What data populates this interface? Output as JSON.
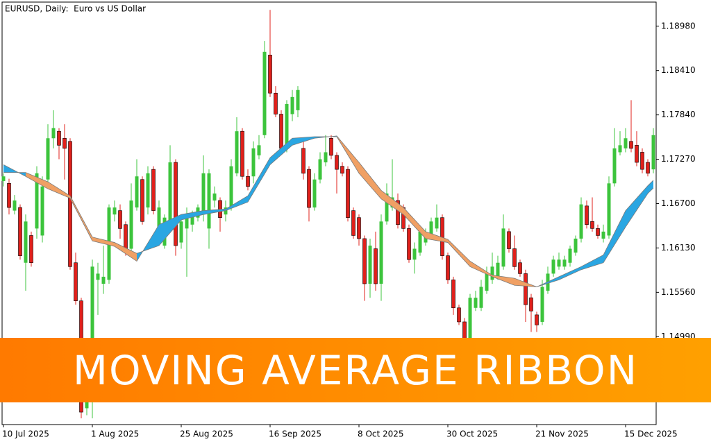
{
  "chart_data": {
    "type": "candlestick",
    "title": "EURUSD, Daily:  Euro vs US Dollar",
    "banner": "MOVING AVERAGE RIBBON",
    "up_color": "#3cc43c",
    "down_color": "#e0201b",
    "ylim": [
      1.1386,
      1.1929
    ],
    "yticks": [
      {
        "value": 1.1898,
        "label": "1.18980"
      },
      {
        "value": 1.1841,
        "label": "1.18410"
      },
      {
        "value": 1.1784,
        "label": "1.17840"
      },
      {
        "value": 1.1727,
        "label": "1.17270"
      },
      {
        "value": 1.167,
        "label": "1.16700"
      },
      {
        "value": 1.1613,
        "label": "1.16130"
      },
      {
        "value": 1.1556,
        "label": "1.15560"
      },
      {
        "value": 1.1499,
        "label": "1.14990"
      }
    ],
    "categories": [
      "10 Jul 2025",
      null,
      null,
      null,
      null,
      null,
      null,
      null,
      null,
      null,
      null,
      null,
      null,
      null,
      null,
      null,
      "1 Aug 2025",
      null,
      null,
      null,
      null,
      null,
      null,
      null,
      null,
      null,
      null,
      null,
      null,
      null,
      null,
      null,
      "25 Aug 2025",
      null,
      null,
      null,
      null,
      null,
      null,
      null,
      null,
      null,
      null,
      null,
      null,
      null,
      null,
      null,
      "16 Sep 2025",
      null,
      null,
      null,
      null,
      null,
      null,
      null,
      null,
      null,
      null,
      null,
      null,
      null,
      null,
      null,
      "8 Oct 2025",
      null,
      null,
      null,
      null,
      null,
      null,
      null,
      null,
      null,
      null,
      null,
      null,
      null,
      null,
      null,
      "30 Oct 2025",
      null,
      null,
      null,
      null,
      null,
      null,
      null,
      null,
      null,
      null,
      null,
      null,
      null,
      null,
      null,
      "21 Nov 2025",
      null,
      null,
      null,
      null,
      null,
      null,
      null,
      null,
      null,
      null,
      null,
      null,
      null,
      null,
      null,
      "15 Dec 2025",
      null,
      null,
      null,
      null,
      null
    ],
    "ohlc": [
      [
        1.1699,
        1.1709,
        1.1692,
        1.1705
      ],
      [
        1.1696,
        1.1702,
        1.1656,
        1.1665
      ],
      [
        1.1661,
        1.1681,
        1.1656,
        1.1674
      ],
      [
        1.1665,
        1.1669,
        1.1598,
        1.1603
      ],
      [
        1.1594,
        1.1656,
        1.1558,
        1.1647
      ],
      [
        1.1629,
        1.1634,
        1.1589,
        1.1594
      ],
      [
        1.1638,
        1.1718,
        1.1625,
        1.1709
      ],
      [
        1.1629,
        1.1705,
        1.162,
        1.1692
      ],
      [
        1.1701,
        1.1772,
        1.1692,
        1.1754
      ],
      [
        1.1754,
        1.179,
        1.1741,
        1.1767
      ],
      [
        1.1763,
        1.1767,
        1.1727,
        1.1745
      ],
      [
        1.1754,
        1.1772,
        1.1701,
        1.1741
      ],
      [
        1.175,
        1.1754,
        1.1585,
        1.1589
      ],
      [
        1.1594,
        1.1607,
        1.154,
        1.1545
      ],
      [
        1.1545,
        1.1549,
        1.1394,
        1.1402
      ],
      [
        1.1407,
        1.1496,
        1.1398,
        1.1478
      ],
      [
        1.1496,
        1.1598,
        1.1394,
        1.1589
      ],
      [
        1.1572,
        1.1594,
        1.1527,
        1.158
      ],
      [
        1.1567,
        1.1616,
        1.1554,
        1.1576
      ],
      [
        1.1572,
        1.1669,
        1.1567,
        1.1665
      ],
      [
        1.1656,
        1.1674,
        1.1647,
        1.1665
      ],
      [
        1.1661,
        1.1669,
        1.1625,
        1.1638
      ],
      [
        1.1643,
        1.1647,
        1.1603,
        1.1607
      ],
      [
        1.1612,
        1.1696,
        1.1607,
        1.1674
      ],
      [
        1.1665,
        1.1727,
        1.1661,
        1.1705
      ],
      [
        1.1701,
        1.1705,
        1.1643,
        1.1647
      ],
      [
        1.1665,
        1.1718,
        1.1656,
        1.1709
      ],
      [
        1.1714,
        1.1718,
        1.1656,
        1.1661
      ],
      [
        1.1629,
        1.1674,
        1.1625,
        1.1665
      ],
      [
        1.1616,
        1.1656,
        1.1612,
        1.1652
      ],
      [
        1.1647,
        1.1745,
        1.1638,
        1.1723
      ],
      [
        1.1723,
        1.1727,
        1.1603,
        1.1616
      ],
      [
        1.162,
        1.1656,
        1.1612,
        1.1647
      ],
      [
        1.1638,
        1.1665,
        1.1576,
        1.1656
      ],
      [
        1.1643,
        1.1661,
        1.1634,
        1.1656
      ],
      [
        1.1652,
        1.1669,
        1.1647,
        1.1665
      ],
      [
        1.1656,
        1.1732,
        1.1647,
        1.1709
      ],
      [
        1.1638,
        1.1714,
        1.1612,
        1.1709
      ],
      [
        1.1674,
        1.1692,
        1.1665,
        1.1683
      ],
      [
        1.1674,
        1.1678,
        1.1634,
        1.1652
      ],
      [
        1.1656,
        1.1674,
        1.1647,
        1.1665
      ],
      [
        1.1665,
        1.1727,
        1.1661,
        1.1718
      ],
      [
        1.1709,
        1.1781,
        1.1705,
        1.1763
      ],
      [
        1.1763,
        1.1767,
        1.1701,
        1.1705
      ],
      [
        1.1705,
        1.1714,
        1.1687,
        1.1692
      ],
      [
        1.1705,
        1.175,
        1.1696,
        1.1741
      ],
      [
        1.1732,
        1.1758,
        1.1727,
        1.1745
      ],
      [
        1.1758,
        1.1879,
        1.1754,
        1.1865
      ],
      [
        1.1861,
        1.1919,
        1.1807,
        1.1812
      ],
      [
        1.1812,
        1.1821,
        1.1781,
        1.1785
      ],
      [
        1.1785,
        1.179,
        1.1736,
        1.1741
      ],
      [
        1.1741,
        1.1803,
        1.1736,
        1.1798
      ],
      [
        1.1785,
        1.1816,
        1.1776,
        1.1807
      ],
      [
        1.179,
        1.1821,
        1.1781,
        1.1816
      ],
      [
        1.1741,
        1.1754,
        1.1701,
        1.1709
      ],
      [
        1.1714,
        1.1718,
        1.1647,
        1.1665
      ],
      [
        1.1665,
        1.1709,
        1.1661,
        1.1701
      ],
      [
        1.1701,
        1.1736,
        1.1696,
        1.1727
      ],
      [
        1.1723,
        1.1758,
        1.1718,
        1.1736
      ],
      [
        1.1754,
        1.1758,
        1.1727,
        1.1732
      ],
      [
        1.1732,
        1.1736,
        1.1683,
        1.1714
      ],
      [
        1.1718,
        1.1723,
        1.1705,
        1.1709
      ],
      [
        1.1714,
        1.1718,
        1.1647,
        1.1652
      ],
      [
        1.1661,
        1.1665,
        1.1625,
        1.1629
      ],
      [
        1.1652,
        1.1656,
        1.1616,
        1.1625
      ],
      [
        1.1625,
        1.1629,
        1.1545,
        1.1567
      ],
      [
        1.1567,
        1.1625,
        1.1549,
        1.1616
      ],
      [
        1.1612,
        1.1634,
        1.1558,
        1.1567
      ],
      [
        1.1567,
        1.1656,
        1.1545,
        1.1647
      ],
      [
        1.1647,
        1.1696,
        1.1643,
        1.1683
      ],
      [
        1.1665,
        1.1727,
        1.1661,
        1.1678
      ],
      [
        1.1674,
        1.1683,
        1.1638,
        1.1643
      ],
      [
        1.1665,
        1.1669,
        1.1634,
        1.1638
      ],
      [
        1.1638,
        1.1643,
        1.1594,
        1.1598
      ],
      [
        1.1598,
        1.162,
        1.158,
        1.1612
      ],
      [
        1.1607,
        1.1638,
        1.1603,
        1.1634
      ],
      [
        1.162,
        1.1638,
        1.1616,
        1.1629
      ],
      [
        1.1629,
        1.1652,
        1.1625,
        1.1647
      ],
      [
        1.1638,
        1.1669,
        1.1634,
        1.1652
      ],
      [
        1.1652,
        1.1656,
        1.1598,
        1.1603
      ],
      [
        1.1603,
        1.1607,
        1.1567,
        1.1572
      ],
      [
        1.1572,
        1.1576,
        1.1527,
        1.1536
      ],
      [
        1.1536,
        1.154,
        1.1514,
        1.1518
      ],
      [
        1.1518,
        1.1523,
        1.1487,
        1.1491
      ],
      [
        1.1491,
        1.1554,
        1.1487,
        1.1549
      ],
      [
        1.1536,
        1.1558,
        1.1532,
        1.1549
      ],
      [
        1.1536,
        1.1572,
        1.1532,
        1.1563
      ],
      [
        1.1558,
        1.1589,
        1.1554,
        1.158
      ],
      [
        1.1572,
        1.1607,
        1.1567,
        1.1589
      ],
      [
        1.1576,
        1.1603,
        1.1572,
        1.1594
      ],
      [
        1.1589,
        1.1656,
        1.1585,
        1.1638
      ],
      [
        1.1634,
        1.1638,
        1.1607,
        1.1612
      ],
      [
        1.1612,
        1.1629,
        1.1585,
        1.1589
      ],
      [
        1.1594,
        1.1598,
        1.1576,
        1.158
      ],
      [
        1.158,
        1.1585,
        1.1518,
        1.154
      ],
      [
        1.1549,
        1.1554,
        1.1505,
        1.1532
      ],
      [
        1.1527,
        1.1531,
        1.1505,
        1.1514
      ],
      [
        1.1518,
        1.1572,
        1.1514,
        1.1563
      ],
      [
        1.1558,
        1.1589,
        1.1554,
        1.158
      ],
      [
        1.158,
        1.1603,
        1.1576,
        1.1598
      ],
      [
        1.1589,
        1.1607,
        1.1585,
        1.1598
      ],
      [
        1.1589,
        1.1603,
        1.1585,
        1.1598
      ],
      [
        1.1594,
        1.1616,
        1.1589,
        1.1612
      ],
      [
        1.1607,
        1.1629,
        1.1603,
        1.1625
      ],
      [
        1.1625,
        1.1678,
        1.162,
        1.1669
      ],
      [
        1.1667,
        1.1674,
        1.1638,
        1.1643
      ],
      [
        1.1647,
        1.1678,
        1.1634,
        1.1638
      ],
      [
        1.1638,
        1.1643,
        1.1625,
        1.1629
      ],
      [
        1.1625,
        1.1643,
        1.162,
        1.1634
      ],
      [
        1.1629,
        1.1705,
        1.1625,
        1.1696
      ],
      [
        1.1696,
        1.1767,
        1.1692,
        1.1741
      ],
      [
        1.1736,
        1.1763,
        1.1732,
        1.1745
      ],
      [
        1.1741,
        1.1767,
        1.1736,
        1.1754
      ],
      [
        1.175,
        1.1803,
        1.1736,
        1.1741
      ],
      [
        1.1745,
        1.1763,
        1.1718,
        1.1723
      ],
      [
        1.1736,
        1.1741,
        1.1709,
        1.1714
      ],
      [
        1.1723,
        1.1727,
        1.1705,
        1.1709
      ],
      [
        1.1714,
        1.1767,
        1.1709,
        1.1758
      ]
    ],
    "ribbon": {
      "up_color": "#2aa6e2",
      "down_color": "#f0a064",
      "line_color": "#7a7a7a",
      "x": [
        0,
        4,
        8,
        12,
        16,
        20,
        24,
        28,
        32,
        36,
        40,
        44,
        48,
        52,
        56,
        60,
        64,
        68,
        72,
        76,
        80,
        84,
        88,
        92,
        96,
        100,
        104,
        108,
        112,
        116,
        117
      ],
      "fast": [
        1.172,
        1.1705,
        1.1689,
        1.1677,
        1.1622,
        1.1615,
        1.1596,
        1.1643,
        1.1656,
        1.1661,
        1.1663,
        1.168,
        1.1729,
        1.1754,
        1.1756,
        1.1756,
        1.1709,
        1.1676,
        1.1656,
        1.1625,
        1.162,
        1.1589,
        1.1576,
        1.1565,
        1.1563,
        1.1576,
        1.1589,
        1.1604,
        1.1661,
        1.1693,
        1.17
      ],
      "slow": [
        1.171,
        1.171,
        1.1698,
        1.168,
        1.1627,
        1.162,
        1.1606,
        1.1616,
        1.1649,
        1.1656,
        1.1661,
        1.1672,
        1.172,
        1.1745,
        1.1754,
        1.1757,
        1.1723,
        1.1687,
        1.1665,
        1.1634,
        1.1624,
        1.1596,
        1.1578,
        1.1574,
        1.1563,
        1.1572,
        1.1585,
        1.1594,
        1.164,
        1.1683,
        1.169
      ]
    }
  }
}
